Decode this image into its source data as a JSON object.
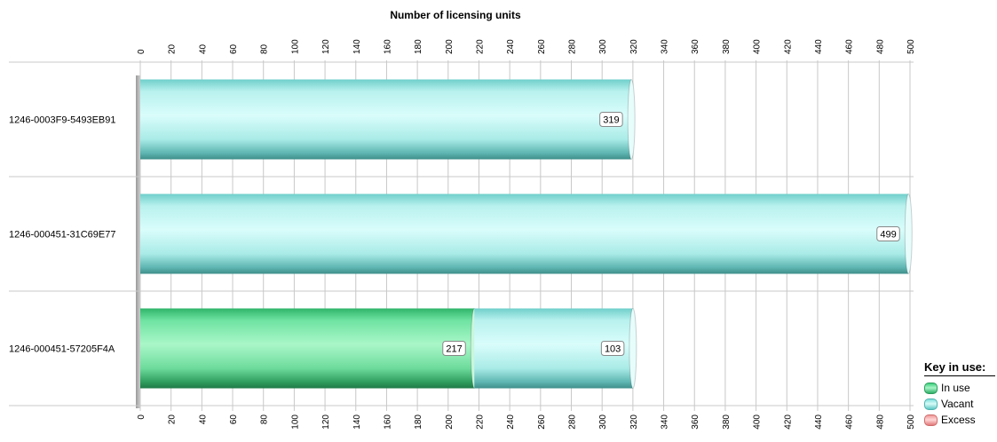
{
  "chart_data": {
    "type": "bar",
    "orientation": "horizontal",
    "stacked": true,
    "title": "Number of licensing units",
    "categories": [
      "1246-0003F9-5493EB91",
      "1246-000451-31C69E77",
      "1246-000451-57205F4A"
    ],
    "series": [
      {
        "name": "In use",
        "color": "#5fe39a",
        "values": [
          0,
          0,
          217
        ]
      },
      {
        "name": "Vacant",
        "color": "#aef2ee",
        "values": [
          319,
          499,
          103
        ]
      },
      {
        "name": "Excess",
        "color": "#f7a1a1",
        "values": [
          0,
          0,
          0
        ]
      }
    ],
    "xlim": [
      0,
      500
    ],
    "xticks": [
      0,
      20,
      40,
      60,
      80,
      100,
      120,
      140,
      160,
      180,
      200,
      220,
      240,
      260,
      280,
      300,
      320,
      340,
      360,
      380,
      400,
      420,
      440,
      460,
      480,
      500
    ],
    "grid": true,
    "legend": {
      "title": "Key in use:",
      "position": "bottom-right"
    }
  }
}
